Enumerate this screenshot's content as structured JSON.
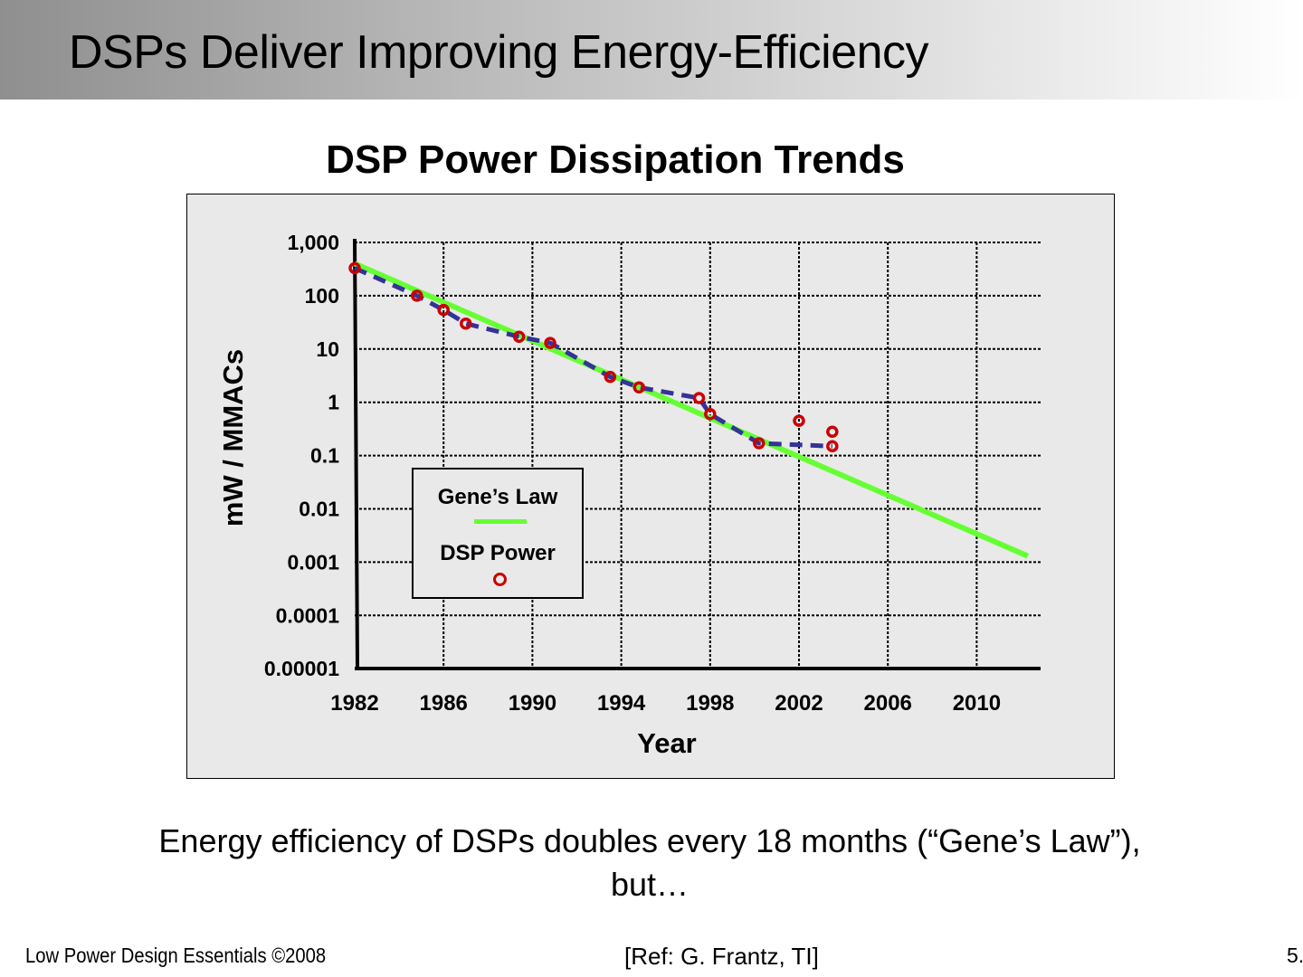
{
  "slide": {
    "title": "DSPs Deliver Improving Energy-Efficiency",
    "caption_line1": "Energy efficiency of DSPs doubles every 18 months (“Gene’s Law”),",
    "caption_line2": "but…",
    "footer_left": "Low Power Design Essentials ©2008",
    "footer_ref": "[Ref: G. Frantz, TI]",
    "page_number": "5."
  },
  "chart_data": {
    "type": "scatter",
    "title": "DSP Power Dissipation Trends",
    "xlabel": "Year",
    "ylabel": "mW / MMACs",
    "yscale": "log",
    "xlim": [
      1982,
      2013
    ],
    "ylim": [
      1e-05,
      1000
    ],
    "grid": true,
    "x_ticks": [
      1982,
      1986,
      1990,
      1994,
      1998,
      2002,
      2006,
      2010
    ],
    "x_tick_labels": [
      "1982",
      "1986",
      "1990",
      "1994",
      "1998",
      "2002",
      "2006",
      "2010"
    ],
    "y_ticks": [
      1000,
      100,
      10,
      1,
      0.1,
      0.01,
      0.001,
      0.0001,
      1e-05
    ],
    "y_tick_labels": [
      "1,000",
      "100",
      "10",
      "1",
      "0.1",
      "0.01",
      "0.001",
      "0.0001",
      "0.00001"
    ],
    "legend": {
      "placement": "lower-left",
      "entries": [
        {
          "label": "Gene’s Law",
          "style": "line",
          "color": "#66ff33"
        },
        {
          "label": "DSP Power",
          "style": "marker",
          "color": "#cc0000"
        }
      ]
    },
    "series": [
      {
        "name": "Gene’s Law",
        "style": "line",
        "color": "#66ff33",
        "x": [
          1982,
          2012.3
        ],
        "y": [
          400,
          0.0013
        ]
      },
      {
        "name": "DSP Power",
        "style": "markers",
        "color": "#cc0000",
        "x": [
          1982,
          1984.8,
          1986,
          1987,
          1989.4,
          1990.8,
          1993.5,
          1994.8,
          1997.5,
          1998,
          2000.2,
          2002,
          2003.5,
          2003.5
        ],
        "y": [
          330,
          100,
          54,
          30,
          17,
          13,
          3,
          1.9,
          1.2,
          0.6,
          0.17,
          0.45,
          0.28,
          0.15
        ]
      },
      {
        "name": "DSP Power trend",
        "style": "dashed-line",
        "color": "#333399",
        "x": [
          1982,
          1984.8,
          1986,
          1987,
          1989.4,
          1990.8,
          1993.5,
          1994.8,
          1997.5,
          1998,
          2000.2,
          2003.5
        ],
        "y": [
          330,
          100,
          54,
          30,
          17,
          13,
          3,
          1.9,
          1.2,
          0.6,
          0.17,
          0.15
        ]
      }
    ]
  }
}
